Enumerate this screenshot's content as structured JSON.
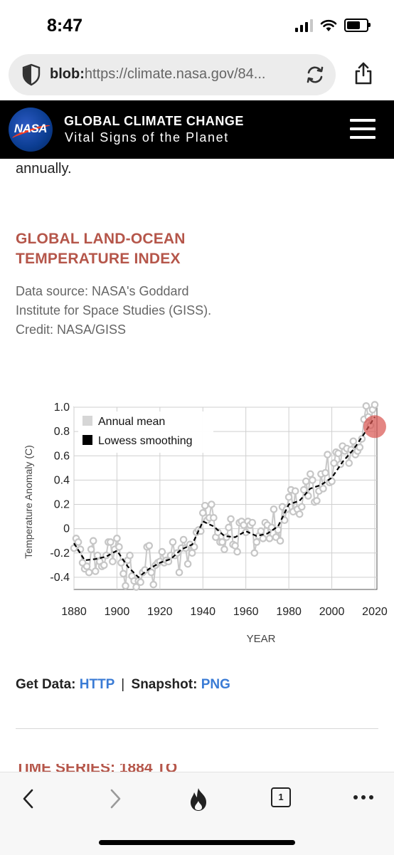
{
  "status_bar": {
    "time": "8:47"
  },
  "browser": {
    "url_scheme": "blob:",
    "url_rest": "https://climate.nasa.gov/84...",
    "tab_count": "1"
  },
  "site_header": {
    "logo_text": "NASA",
    "title": "GLOBAL CLIMATE CHANGE",
    "subtitle": "Vital Signs of the Planet"
  },
  "content": {
    "prev_text": "annually.",
    "section_title": "GLOBAL LAND-OCEAN TEMPERATURE INDEX",
    "source": "Data source: NASA's Goddard Institute for Space Studies (GISS). Credit: NASA/GISS",
    "get_data_label": "Get Data:",
    "http_link": "HTTP",
    "separator": "|",
    "snapshot_label": "Snapshot:",
    "png_link": "PNG",
    "next_section_title": "TIME SERIES: 1884 TO"
  },
  "chart_data": {
    "type": "line",
    "xlabel": "YEAR",
    "ylabel": "Temperature Anomaly (C)",
    "xlim": [
      1880,
      2021
    ],
    "ylim": [
      -0.5,
      1.0
    ],
    "xticks": [
      1880,
      1900,
      1920,
      1940,
      1960,
      1980,
      2000,
      2020
    ],
    "yticks": [
      1.0,
      0.8,
      0.6,
      0.4,
      0.2,
      0,
      -0.2,
      -0.4
    ],
    "ytick_labels": [
      "1.0",
      "0.8",
      "0.6",
      "0.4",
      "0.2",
      "0",
      "-0.2",
      "-0.4"
    ],
    "legend_position": "top-left",
    "grid": true,
    "series": [
      {
        "name": "Annual mean",
        "style": "gray-circles",
        "color": "#c8c8c8",
        "x": [
          1880,
          1881,
          1882,
          1883,
          1884,
          1885,
          1886,
          1887,
          1888,
          1889,
          1890,
          1891,
          1892,
          1893,
          1894,
          1895,
          1896,
          1897,
          1898,
          1899,
          1900,
          1901,
          1902,
          1903,
          1904,
          1905,
          1906,
          1907,
          1908,
          1909,
          1910,
          1911,
          1912,
          1913,
          1914,
          1915,
          1916,
          1917,
          1918,
          1919,
          1920,
          1921,
          1922,
          1923,
          1924,
          1925,
          1926,
          1927,
          1928,
          1929,
          1930,
          1931,
          1932,
          1933,
          1934,
          1935,
          1936,
          1937,
          1938,
          1939,
          1940,
          1941,
          1942,
          1943,
          1944,
          1945,
          1946,
          1947,
          1948,
          1949,
          1950,
          1951,
          1952,
          1953,
          1954,
          1955,
          1956,
          1957,
          1958,
          1959,
          1960,
          1961,
          1962,
          1963,
          1964,
          1965,
          1966,
          1967,
          1968,
          1969,
          1970,
          1971,
          1972,
          1973,
          1974,
          1975,
          1976,
          1977,
          1978,
          1979,
          1980,
          1981,
          1982,
          1983,
          1984,
          1985,
          1986,
          1987,
          1988,
          1989,
          1990,
          1991,
          1992,
          1993,
          1994,
          1995,
          1996,
          1997,
          1998,
          1999,
          2000,
          2001,
          2002,
          2003,
          2004,
          2005,
          2006,
          2007,
          2008,
          2009,
          2010,
          2011,
          2012,
          2013,
          2014,
          2015,
          2016,
          2017,
          2018,
          2019,
          2020
        ],
        "y": [
          -0.16,
          -0.08,
          -0.11,
          -0.17,
          -0.28,
          -0.33,
          -0.31,
          -0.36,
          -0.17,
          -0.1,
          -0.35,
          -0.22,
          -0.27,
          -0.31,
          -0.3,
          -0.22,
          -0.11,
          -0.11,
          -0.27,
          -0.17,
          -0.08,
          -0.15,
          -0.28,
          -0.37,
          -0.47,
          -0.26,
          -0.22,
          -0.39,
          -0.43,
          -0.48,
          -0.43,
          -0.44,
          -0.36,
          -0.34,
          -0.15,
          -0.14,
          -0.36,
          -0.46,
          -0.3,
          -0.28,
          -0.27,
          -0.19,
          -0.28,
          -0.26,
          -0.27,
          -0.22,
          -0.11,
          -0.22,
          -0.2,
          -0.36,
          -0.16,
          -0.09,
          -0.16,
          -0.29,
          -0.13,
          -0.2,
          -0.15,
          -0.03,
          -0.01,
          -0.02,
          0.13,
          0.19,
          0.07,
          0.09,
          0.2,
          0.09,
          -0.07,
          -0.03,
          -0.11,
          -0.11,
          -0.17,
          -0.07,
          0.01,
          0.08,
          -0.13,
          -0.14,
          -0.19,
          0.05,
          0.06,
          0.03,
          -0.03,
          0.06,
          0.03,
          0.05,
          -0.2,
          -0.11,
          -0.06,
          -0.02,
          -0.08,
          0.05,
          0.03,
          -0.08,
          0.01,
          0.16,
          -0.07,
          -0.01,
          -0.1,
          0.18,
          0.07,
          0.16,
          0.26,
          0.32,
          0.14,
          0.31,
          0.16,
          0.12,
          0.18,
          0.32,
          0.39,
          0.27,
          0.45,
          0.4,
          0.22,
          0.23,
          0.31,
          0.45,
          0.33,
          0.46,
          0.61,
          0.38,
          0.39,
          0.54,
          0.63,
          0.62,
          0.53,
          0.68,
          0.64,
          0.66,
          0.54,
          0.65,
          0.72,
          0.61,
          0.64,
          0.67,
          0.74,
          0.9,
          1.01,
          0.92,
          0.85,
          0.98,
          1.02
        ]
      },
      {
        "name": "Lowess smoothing",
        "style": "black-dashed",
        "color": "#000000",
        "x": [
          1880,
          1885,
          1890,
          1895,
          1900,
          1905,
          1910,
          1915,
          1920,
          1925,
          1930,
          1935,
          1940,
          1945,
          1950,
          1955,
          1960,
          1965,
          1970,
          1975,
          1980,
          1985,
          1990,
          1995,
          2000,
          2005,
          2010,
          2015,
          2020
        ],
        "y": [
          -0.12,
          -0.26,
          -0.25,
          -0.23,
          -0.18,
          -0.31,
          -0.4,
          -0.33,
          -0.28,
          -0.25,
          -0.17,
          -0.13,
          0.06,
          0.02,
          -0.06,
          -0.07,
          -0.02,
          -0.06,
          -0.04,
          0.02,
          0.2,
          0.23,
          0.33,
          0.36,
          0.42,
          0.55,
          0.65,
          0.78,
          0.92
        ]
      }
    ],
    "highlight": {
      "x": 2020,
      "y": 0.84,
      "color": "#d9534f"
    }
  }
}
